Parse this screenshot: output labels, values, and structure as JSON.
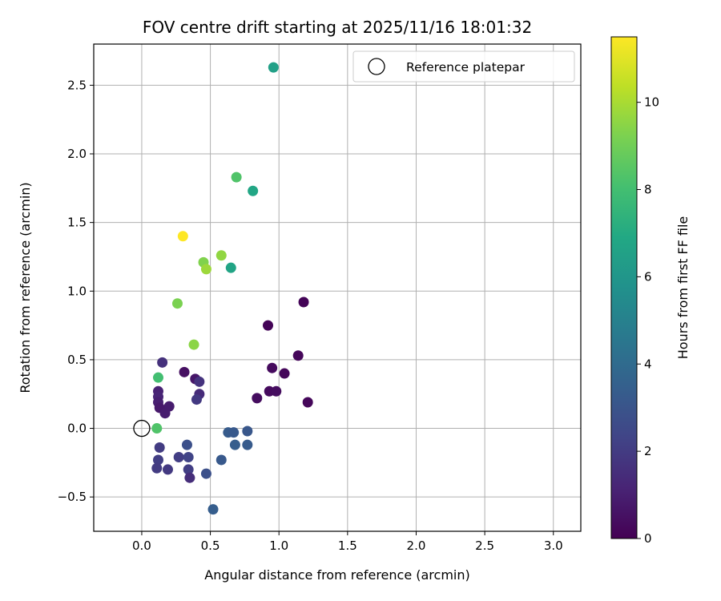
{
  "chart_data": {
    "type": "scatter",
    "title": "FOV centre drift starting at 2025/11/16 18:01:32",
    "xlabel": "Angular distance from reference (arcmin)",
    "ylabel": "Rotation from reference (arcmin)",
    "xlim": [
      -0.35,
      3.2
    ],
    "ylim": [
      -0.75,
      2.8
    ],
    "xticks": [
      0.0,
      0.5,
      1.0,
      1.5,
      2.0,
      2.5,
      3.0
    ],
    "xtick_labels": [
      "0.0",
      "0.5",
      "1.0",
      "1.5",
      "2.0",
      "2.5",
      "3.0"
    ],
    "yticks": [
      -0.5,
      0.0,
      0.5,
      1.0,
      1.5,
      2.0,
      2.5
    ],
    "ytick_labels": [
      "−0.5",
      "0.0",
      "0.5",
      "1.0",
      "1.5",
      "2.0",
      "2.5"
    ],
    "grid": true,
    "legend": {
      "label": "Reference platepar",
      "position": "top-right"
    },
    "reference_point": {
      "x": 0.0,
      "y": 0.0
    },
    "colorbar": {
      "label": "Hours from first FF file",
      "range": [
        0,
        11.5
      ],
      "ticks": [
        0,
        2,
        4,
        6,
        8,
        10
      ],
      "tick_labels": [
        "0",
        "2",
        "4",
        "6",
        "8",
        "10"
      ],
      "colormap": "viridis"
    },
    "points": [
      {
        "x": 0.96,
        "y": 2.63,
        "h": 6.5
      },
      {
        "x": 0.69,
        "y": 1.83,
        "h": 8.3
      },
      {
        "x": 0.81,
        "y": 1.73,
        "h": 6.8
      },
      {
        "x": 0.3,
        "y": 1.4,
        "h": 11.5
      },
      {
        "x": 0.45,
        "y": 1.21,
        "h": 9.3
      },
      {
        "x": 0.58,
        "y": 1.26,
        "h": 9.6
      },
      {
        "x": 0.47,
        "y": 1.16,
        "h": 9.8
      },
      {
        "x": 0.65,
        "y": 1.17,
        "h": 6.7
      },
      {
        "x": 0.26,
        "y": 0.91,
        "h": 9.2
      },
      {
        "x": 1.18,
        "y": 0.92,
        "h": 0.1
      },
      {
        "x": 0.92,
        "y": 0.75,
        "h": 0.1
      },
      {
        "x": 0.38,
        "y": 0.61,
        "h": 9.5
      },
      {
        "x": 1.14,
        "y": 0.53,
        "h": 0.2
      },
      {
        "x": 0.15,
        "y": 0.48,
        "h": 1.6
      },
      {
        "x": 0.95,
        "y": 0.44,
        "h": 0.3
      },
      {
        "x": 1.04,
        "y": 0.4,
        "h": 0.2
      },
      {
        "x": 0.31,
        "y": 0.41,
        "h": 0.5
      },
      {
        "x": 0.12,
        "y": 0.37,
        "h": 8.0
      },
      {
        "x": 0.39,
        "y": 0.36,
        "h": 0.7
      },
      {
        "x": 0.42,
        "y": 0.34,
        "h": 1.7
      },
      {
        "x": 0.93,
        "y": 0.27,
        "h": 0.3
      },
      {
        "x": 0.98,
        "y": 0.27,
        "h": 0.4
      },
      {
        "x": 0.12,
        "y": 0.27,
        "h": 1.1
      },
      {
        "x": 0.42,
        "y": 0.25,
        "h": 1.4
      },
      {
        "x": 0.12,
        "y": 0.23,
        "h": 1.2
      },
      {
        "x": 0.84,
        "y": 0.22,
        "h": 0.4
      },
      {
        "x": 0.4,
        "y": 0.21,
        "h": 1.9
      },
      {
        "x": 0.12,
        "y": 0.19,
        "h": 1.0
      },
      {
        "x": 1.21,
        "y": 0.19,
        "h": 0.2
      },
      {
        "x": 0.2,
        "y": 0.16,
        "h": 0.9
      },
      {
        "x": 0.13,
        "y": 0.15,
        "h": 0.8
      },
      {
        "x": 0.17,
        "y": 0.11,
        "h": 0.9
      },
      {
        "x": 0.11,
        "y": 0.0,
        "h": 8.3
      },
      {
        "x": 0.63,
        "y": -0.03,
        "h": 3.3
      },
      {
        "x": 0.67,
        "y": -0.03,
        "h": 3.2
      },
      {
        "x": 0.77,
        "y": -0.02,
        "h": 3.1
      },
      {
        "x": 0.68,
        "y": -0.12,
        "h": 3.4
      },
      {
        "x": 0.77,
        "y": -0.12,
        "h": 3.3
      },
      {
        "x": 0.33,
        "y": -0.12,
        "h": 2.8
      },
      {
        "x": 0.13,
        "y": -0.14,
        "h": 2.0
      },
      {
        "x": 0.27,
        "y": -0.21,
        "h": 2.1
      },
      {
        "x": 0.34,
        "y": -0.21,
        "h": 2.3
      },
      {
        "x": 0.58,
        "y": -0.23,
        "h": 3.2
      },
      {
        "x": 0.12,
        "y": -0.23,
        "h": 2.1
      },
      {
        "x": 0.11,
        "y": -0.29,
        "h": 2.0
      },
      {
        "x": 0.19,
        "y": -0.3,
        "h": 1.9
      },
      {
        "x": 0.34,
        "y": -0.3,
        "h": 2.1
      },
      {
        "x": 0.47,
        "y": -0.33,
        "h": 2.8
      },
      {
        "x": 0.35,
        "y": -0.36,
        "h": 1.5
      },
      {
        "x": 0.52,
        "y": -0.59,
        "h": 3.4
      }
    ]
  }
}
